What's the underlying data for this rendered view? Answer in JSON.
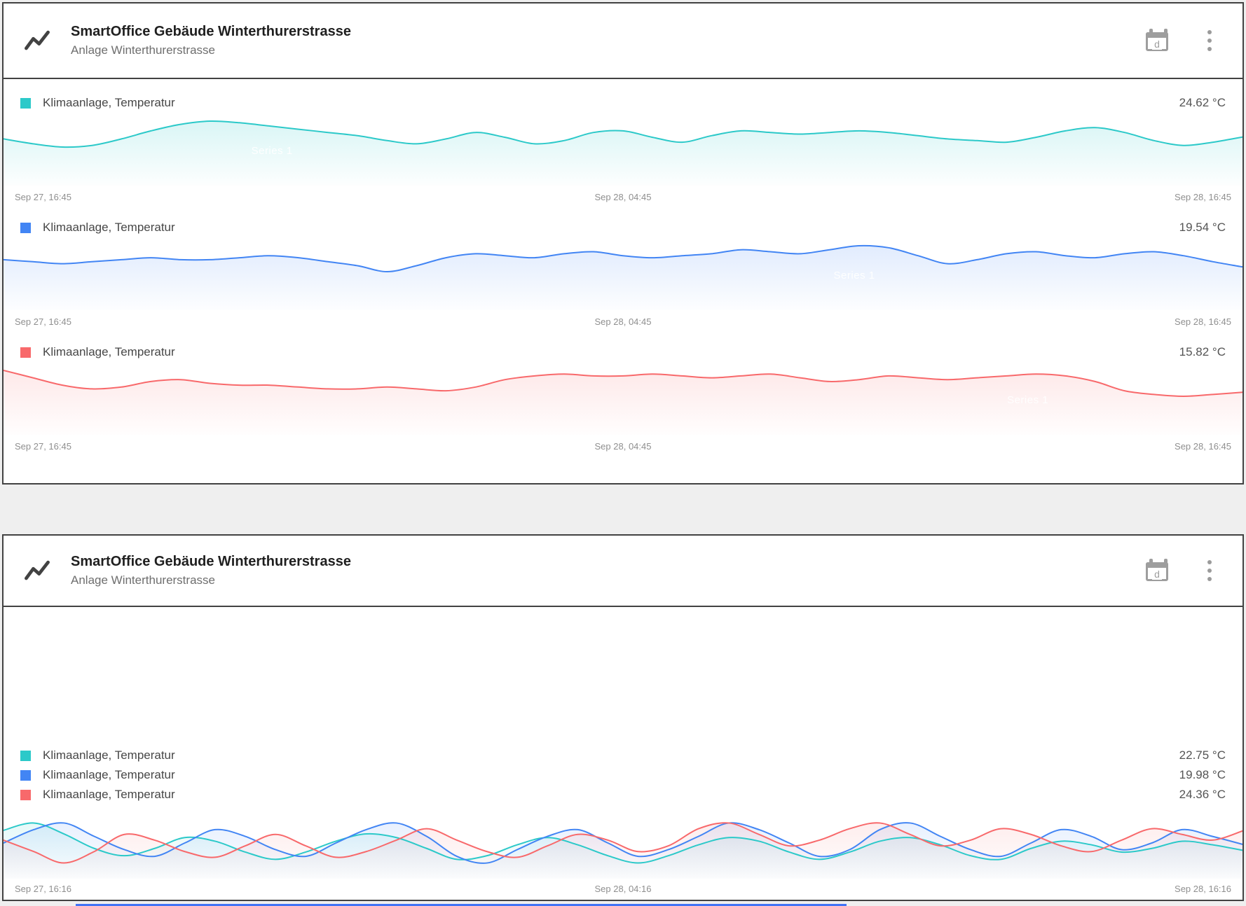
{
  "cards": [
    {
      "title": "SmartOffice Gebäude Winterthurerstrasse",
      "subtitle": "Anlage Winterthurerstrasse",
      "header_icons": {
        "chart_icon": "line-chart-zigzag",
        "timewindow_letter": "d",
        "menu_icon": "kebab-vertical-dots"
      },
      "sections": [
        {
          "label": "Klimaanlage, Temperatur",
          "value": "24.62 °C",
          "color": "#2cc9c9",
          "watermark": "Series 1",
          "axis": {
            "start": "Sep 27, 16:45",
            "mid": "Sep 28, 04:45",
            "end": "Sep 28, 16:45"
          }
        },
        {
          "label": "Klimaanlage, Temperatur",
          "value": "19.54 °C",
          "color": "#4285f4",
          "watermark": "Series 1",
          "axis": {
            "start": "Sep 27, 16:45",
            "mid": "Sep 28, 04:45",
            "end": "Sep 28, 16:45"
          }
        },
        {
          "label": "Klimaanlage, Temperatur",
          "value": "15.82 °C",
          "color": "#f8696b",
          "watermark": "Series 1",
          "axis": {
            "start": "Sep 27, 16:45",
            "mid": "Sep 28, 04:45",
            "end": "Sep 28, 16:45"
          }
        }
      ]
    },
    {
      "title": "SmartOffice Gebäude Winterthurerstrasse",
      "subtitle": "Anlage Winterthurerstrasse",
      "header_icons": {
        "chart_icon": "line-chart-zigzag",
        "timewindow_letter": "d",
        "menu_icon": "kebab-vertical-dots"
      },
      "legend": [
        {
          "label": "Klimaanlage, Temperatur",
          "value": "22.75 °C",
          "color": "#2cc9c9"
        },
        {
          "label": "Klimaanlage, Temperatur",
          "value": "19.98 °C",
          "color": "#4285f4"
        },
        {
          "label": "Klimaanlage, Temperatur",
          "value": "24.36 °C",
          "color": "#f8696b"
        }
      ],
      "axis": {
        "start": "Sep 27, 16:16",
        "mid": "Sep 28, 04:16",
        "end": "Sep 28, 16:16"
      }
    }
  ],
  "chart_data": [
    {
      "type": "line",
      "title": "Klimaanlage, Temperatur (teal sparkline, card 1)",
      "ylabel": "°C",
      "y_axis_visible": false,
      "grid": false,
      "x_labels": [
        "Sep 27, 16:45",
        "Sep 28, 04:45",
        "Sep 28, 16:45"
      ],
      "series": [
        {
          "name": "Klimaanlage, Temperatur",
          "color": "#2cc9c9",
          "current": 24.62,
          "values": [
            24.5,
            24.2,
            24.0,
            24.1,
            24.5,
            25.0,
            25.4,
            25.6,
            25.5,
            25.3,
            25.1,
            24.9,
            24.7,
            24.4,
            24.2,
            24.5,
            24.9,
            24.6,
            24.2,
            24.4,
            24.9,
            25.0,
            24.6,
            24.3,
            24.7,
            25.0,
            24.9,
            24.8,
            24.9,
            25.0,
            24.9,
            24.7,
            24.5,
            24.4,
            24.3,
            24.6,
            25.0,
            25.2,
            24.9,
            24.4,
            24.1,
            24.3,
            24.62
          ]
        }
      ]
    },
    {
      "type": "line",
      "title": "Klimaanlage, Temperatur (blue sparkline, card 1)",
      "ylabel": "°C",
      "y_axis_visible": false,
      "grid": false,
      "x_labels": [
        "Sep 27, 16:45",
        "Sep 28, 04:45",
        "Sep 28, 16:45"
      ],
      "series": [
        {
          "name": "Klimaanlage, Temperatur",
          "color": "#4285f4",
          "current": 19.54,
          "values": [
            19.9,
            19.8,
            19.7,
            19.8,
            19.9,
            20.0,
            19.9,
            19.9,
            20.0,
            20.1,
            20.0,
            19.8,
            19.6,
            19.3,
            19.6,
            20.0,
            20.2,
            20.1,
            20.0,
            20.2,
            20.3,
            20.1,
            20.0,
            20.1,
            20.2,
            20.4,
            20.3,
            20.2,
            20.4,
            20.6,
            20.5,
            20.1,
            19.7,
            19.9,
            20.2,
            20.3,
            20.1,
            20.0,
            20.2,
            20.3,
            20.1,
            19.8,
            19.54
          ]
        }
      ]
    },
    {
      "type": "line",
      "title": "Klimaanlage, Temperatur (red sparkline, card 1)",
      "ylabel": "°C",
      "y_axis_visible": false,
      "grid": false,
      "x_labels": [
        "Sep 27, 16:45",
        "Sep 28, 04:45",
        "Sep 28, 16:45"
      ],
      "series": [
        {
          "name": "Klimaanlage, Temperatur",
          "color": "#f8696b",
          "current": 15.82,
          "values": [
            17.0,
            16.6,
            16.2,
            16.0,
            16.1,
            16.4,
            16.5,
            16.3,
            16.2,
            16.2,
            16.1,
            16.0,
            16.0,
            16.1,
            16.0,
            15.9,
            16.1,
            16.5,
            16.7,
            16.8,
            16.7,
            16.7,
            16.8,
            16.7,
            16.6,
            16.7,
            16.8,
            16.6,
            16.4,
            16.5,
            16.7,
            16.6,
            16.5,
            16.6,
            16.7,
            16.8,
            16.7,
            16.4,
            15.9,
            15.7,
            15.6,
            15.7,
            15.82
          ]
        }
      ]
    },
    {
      "type": "line",
      "title": "Klimaanlage, Temperatur combined (card 2)",
      "ylabel": "°C",
      "y_axis_visible": false,
      "grid": false,
      "x_labels": [
        "Sep 27, 16:16",
        "Sep 28, 04:16",
        "Sep 28, 16:16"
      ],
      "series": [
        {
          "name": "Klimaanlage, Temperatur",
          "color": "#2cc9c9",
          "current": 22.75,
          "values": [
            23.3,
            23.5,
            23.2,
            22.8,
            22.6,
            22.8,
            23.1,
            23.0,
            22.7,
            22.5,
            22.7,
            23.0,
            23.2,
            23.1,
            22.8,
            22.5,
            22.6,
            22.9,
            23.1,
            22.9,
            22.6,
            22.4,
            22.6,
            22.9,
            23.1,
            23.0,
            22.7,
            22.5,
            22.7,
            23.0,
            23.1,
            22.9,
            22.6,
            22.5,
            22.8,
            23.0,
            22.9,
            22.7,
            22.8,
            23.0,
            22.9,
            22.75
          ]
        },
        {
          "name": "Klimaanlage, Temperatur",
          "color": "#4285f4",
          "current": 19.98,
          "values": [
            20.0,
            20.2,
            20.3,
            20.1,
            19.9,
            19.8,
            20.0,
            20.2,
            20.1,
            19.9,
            19.8,
            20.0,
            20.2,
            20.3,
            20.1,
            19.8,
            19.7,
            19.9,
            20.1,
            20.2,
            20.0,
            19.8,
            19.9,
            20.1,
            20.3,
            20.2,
            20.0,
            19.8,
            19.9,
            20.2,
            20.3,
            20.1,
            19.9,
            19.8,
            20.0,
            20.2,
            20.1,
            19.9,
            20.0,
            20.2,
            20.1,
            19.98
          ]
        },
        {
          "name": "Klimaanlage, Temperatur",
          "color": "#f8696b",
          "current": 24.36,
          "values": [
            24.2,
            24.0,
            23.8,
            24.0,
            24.3,
            24.2,
            24.0,
            23.9,
            24.1,
            24.3,
            24.1,
            23.9,
            24.0,
            24.2,
            24.4,
            24.2,
            24.0,
            23.9,
            24.1,
            24.3,
            24.2,
            24.0,
            24.1,
            24.4,
            24.5,
            24.3,
            24.1,
            24.2,
            24.4,
            24.5,
            24.3,
            24.1,
            24.2,
            24.4,
            24.3,
            24.1,
            24.0,
            24.2,
            24.4,
            24.3,
            24.2,
            24.36
          ]
        }
      ]
    }
  ]
}
